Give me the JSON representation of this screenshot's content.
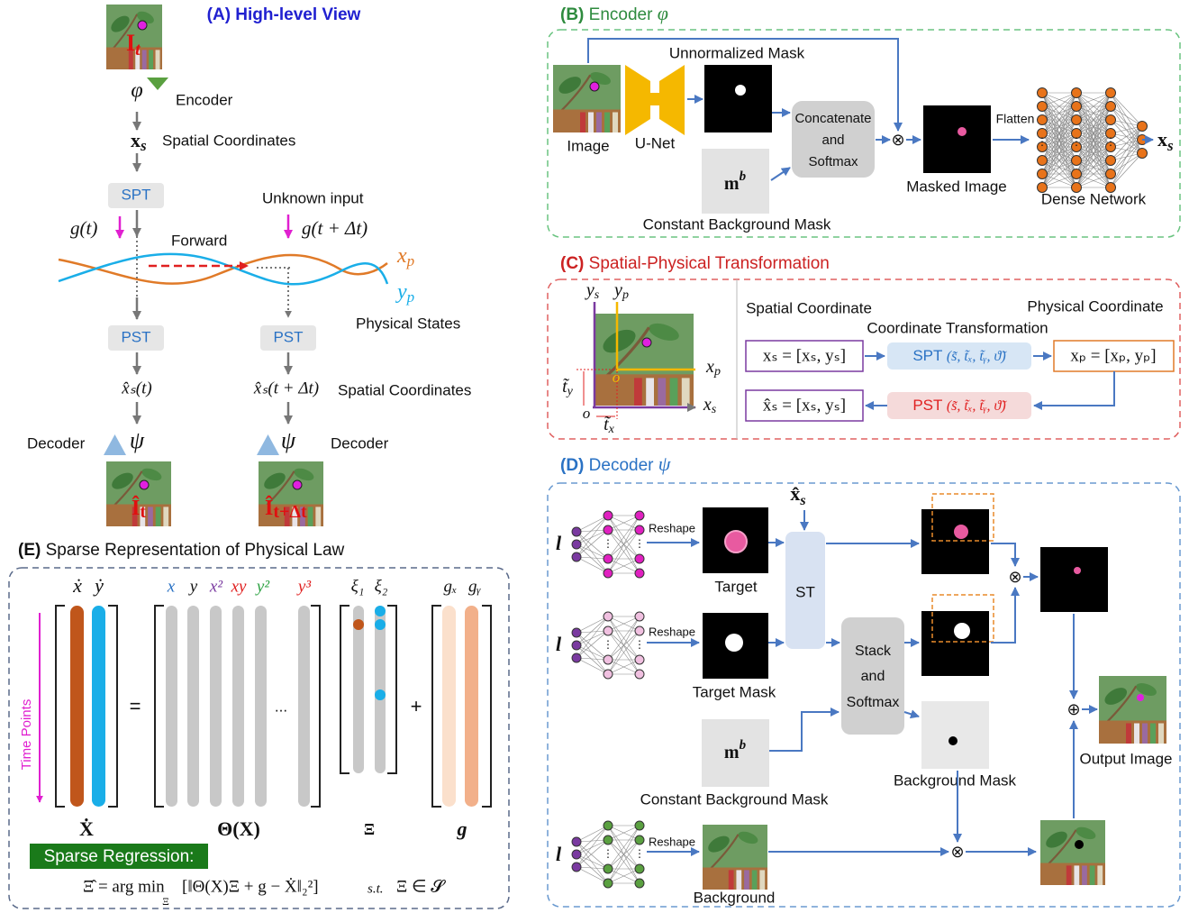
{
  "panel_a": {
    "title": "(A) High-level View",
    "input_image_label": [
      "I",
      "t"
    ],
    "encoder_symbol": "φ",
    "encoder_label": "Encoder",
    "spatial_symbol": [
      "x",
      "s"
    ],
    "spatial_label": "Spatial Coordinates",
    "spt": "SPT",
    "unknown_input": "Unknown input",
    "input_t": "g(t)",
    "input_t_dt": "g(t + Δt)",
    "forward": "Forward",
    "x_p": [
      "x",
      "p"
    ],
    "y_p": [
      "y",
      "p"
    ],
    "physical_states": "Physical States",
    "pst_left": "PST",
    "pst_right": "PST",
    "decoded_t": "x̂ₛ(t)",
    "decoded_t_dt": "x̂ₛ(t + Δt)",
    "decoded_label": "Spatial Coordinates",
    "decoder_left": "Decoder",
    "decoder_right": "Decoder",
    "decoder_symbol_left": "ψ",
    "decoder_symbol_right": "ψ",
    "output_t": [
      "Î",
      "t"
    ],
    "output_t_dt": [
      "Î",
      "t+Δt"
    ]
  },
  "panel_b": {
    "title": [
      "(B)",
      "Encoder",
      "φ"
    ],
    "unnormalized_mask": "Unnormalized Mask",
    "image": "Image",
    "unet": "U-Net",
    "concat": [
      "Concatenate",
      "and",
      "Softmax"
    ],
    "background_mask_symbol": [
      "m",
      "b"
    ],
    "background_mask_label": "Constant Background Mask",
    "masked_image": "Masked Image",
    "flatten": "Flatten",
    "dense_network": "Dense Network",
    "output": [
      "x",
      "s"
    ]
  },
  "panel_c": {
    "title": [
      "(C)",
      "Spatial-Physical Transformation"
    ],
    "y_s": [
      "y",
      "s"
    ],
    "y_p": [
      "y",
      "p"
    ],
    "x_p": [
      "x",
      "p"
    ],
    "x_s": [
      "x",
      "s"
    ],
    "t_y": [
      "t̃",
      "y"
    ],
    "t_x": [
      "t̃",
      "x"
    ],
    "origin_s": "o",
    "origin_p": "o",
    "spatial_coordinate": "Spatial Coordinate",
    "physical_coordinate": "Physical Coordinate",
    "coordinate_transformation": "Coordinate Transformation",
    "spatial_vector": "xₛ = [xₛ, yₛ]",
    "spt": [
      "SPT",
      "(s̃, t̃ₓ, t̃ᵧ, ϑ̃)"
    ],
    "physical_vector": "xₚ = [xₚ, yₚ]",
    "pst": [
      "PST",
      "(s̃, t̃ₓ, t̃ᵧ, ϑ̃)"
    ],
    "reconstructed_vector": "x̂ₛ = [xₛ, yₛ]"
  },
  "panel_d": {
    "title": [
      "(D)",
      "Decoder",
      "ψ"
    ],
    "spatial_input": [
      "x̂",
      "s"
    ],
    "latent": [
      "l",
      "l",
      "l"
    ],
    "reshape": [
      "Reshape",
      "Reshape",
      "Reshape"
    ],
    "target": "Target",
    "target_mask": "Target Mask",
    "st": "ST",
    "stack": [
      "Stack",
      "and",
      "Softmax"
    ],
    "background_mask_symbol": [
      "m",
      "b"
    ],
    "constant_background_mask": "Constant Background Mask",
    "background_mask": "Background Mask",
    "output_image": "Output Image",
    "background": "Background"
  },
  "panel_e": {
    "title": [
      "(E)",
      "Sparse Representation of Physical Law"
    ],
    "derivative_labels": [
      "ẋ",
      "ẏ"
    ],
    "library_labels": [
      "x",
      "y",
      "x²",
      "xy",
      "y²",
      "y³"
    ],
    "coef_labels": [
      "ξ₁",
      "ξ₂"
    ],
    "force_labels": [
      "gₓ",
      "gᵧ"
    ],
    "time_points": "Time Points",
    "equals": "=",
    "ellipsis": "...",
    "plus": "+",
    "matrix_names": [
      "Ẋ",
      "Θ(X)",
      "Ξ",
      "g"
    ],
    "sparse_regression": "Sparse Regression:",
    "formula": [
      "Ξ̂ = arg min",
      "Ξ",
      "[‖Θ(X)Ξ + g − Ẋ‖₂²]",
      "s.t.",
      "Ξ ∈ 𝓢"
    ]
  }
}
